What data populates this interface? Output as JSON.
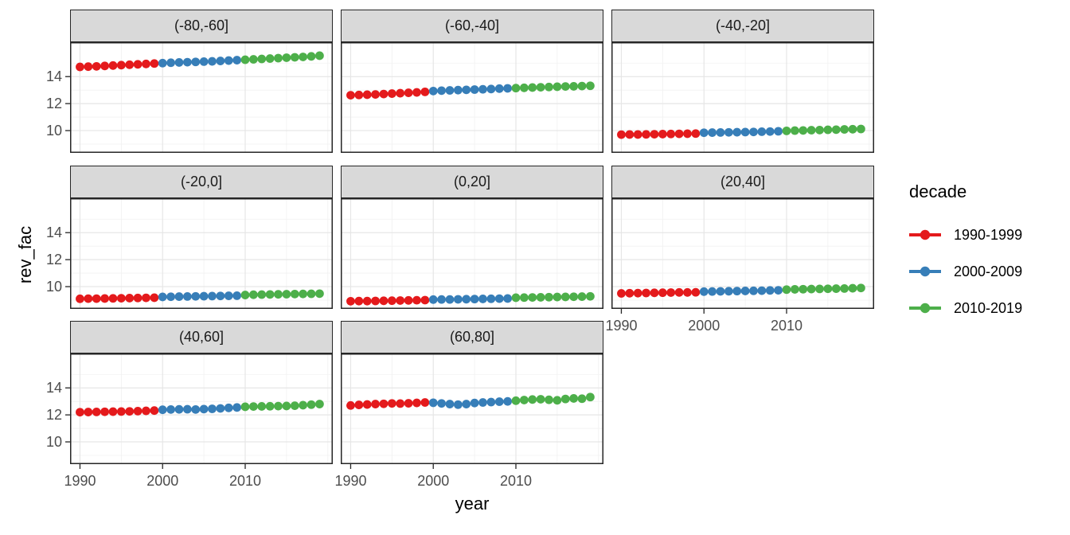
{
  "figure": {
    "y_axis_title": "rev_fac",
    "x_axis_title": "year"
  },
  "legend": {
    "title": "decade",
    "entries": [
      {
        "label": "1990-1999",
        "color": "#E41A1C",
        "start_year": 1990,
        "end_year": 1999
      },
      {
        "label": "2000-2009",
        "color": "#377EB8",
        "start_year": 2000,
        "end_year": 2009
      },
      {
        "label": "2010-2019",
        "color": "#4DAF4A",
        "start_year": 2010,
        "end_year": 2019
      }
    ]
  },
  "chart_data": {
    "type": "scatter",
    "title": "",
    "xlabel": "year",
    "ylabel": "rev_fac",
    "legend_title": "decade",
    "legend_position": "right",
    "grid": true,
    "x": [
      1990,
      1991,
      1992,
      1993,
      1994,
      1995,
      1996,
      1997,
      1998,
      1999,
      2000,
      2001,
      2002,
      2003,
      2004,
      2005,
      2006,
      2007,
      2008,
      2009,
      2010,
      2011,
      2012,
      2013,
      2014,
      2015,
      2016,
      2017,
      2018,
      2019
    ],
    "x_ticks": [
      1990,
      2000,
      2010
    ],
    "x_minor": [
      1995,
      2005,
      2015,
      2020
    ],
    "y_ticks": [
      10,
      12,
      14
    ],
    "y_minor": [
      9,
      11,
      13,
      15
    ],
    "xlim": [
      1988.8,
      2020.6
    ],
    "ylim": [
      8.35,
      16.55
    ],
    "series_by": "decade",
    "facets": [
      {
        "label": "(-80,-60]",
        "values": [
          14.72,
          14.74,
          14.76,
          14.79,
          14.82,
          14.85,
          14.88,
          14.91,
          14.94,
          14.97,
          15.0,
          15.03,
          15.05,
          15.07,
          15.09,
          15.11,
          15.13,
          15.16,
          15.19,
          15.22,
          15.25,
          15.28,
          15.31,
          15.34,
          15.37,
          15.4,
          15.43,
          15.46,
          15.5,
          15.55
        ]
      },
      {
        "label": "(-60,-40]",
        "values": [
          12.62,
          12.64,
          12.66,
          12.68,
          12.71,
          12.74,
          12.77,
          12.8,
          12.83,
          12.87,
          12.93,
          12.96,
          12.98,
          13.0,
          13.02,
          13.04,
          13.06,
          13.08,
          13.11,
          13.13,
          13.15,
          13.17,
          13.19,
          13.21,
          13.23,
          13.25,
          13.27,
          13.28,
          13.3,
          13.32
        ]
      },
      {
        "label": "(-40,-20]",
        "values": [
          9.7,
          9.71,
          9.71,
          9.72,
          9.73,
          9.74,
          9.75,
          9.76,
          9.77,
          9.78,
          9.84,
          9.85,
          9.86,
          9.87,
          9.88,
          9.89,
          9.9,
          9.92,
          9.93,
          9.95,
          9.98,
          10.0,
          10.01,
          10.03,
          10.04,
          10.06,
          10.07,
          10.09,
          10.1,
          10.12
        ]
      },
      {
        "label": "(-20,0]",
        "values": [
          9.1,
          9.11,
          9.11,
          9.12,
          9.13,
          9.14,
          9.15,
          9.16,
          9.17,
          9.18,
          9.24,
          9.25,
          9.26,
          9.27,
          9.28,
          9.29,
          9.3,
          9.31,
          9.32,
          9.33,
          9.38,
          9.4,
          9.41,
          9.42,
          9.43,
          9.44,
          9.45,
          9.46,
          9.47,
          9.48
        ]
      },
      {
        "label": "(0,20]",
        "values": [
          8.92,
          8.93,
          8.93,
          8.94,
          8.95,
          8.96,
          8.97,
          8.98,
          8.99,
          9.0,
          9.04,
          9.05,
          9.05,
          9.06,
          9.07,
          9.08,
          9.09,
          9.1,
          9.11,
          9.12,
          9.18,
          9.19,
          9.2,
          9.21,
          9.22,
          9.23,
          9.24,
          9.25,
          9.26,
          9.28
        ]
      },
      {
        "label": "(20,40]",
        "values": [
          9.5,
          9.51,
          9.52,
          9.53,
          9.54,
          9.55,
          9.56,
          9.57,
          9.57,
          9.58,
          9.63,
          9.64,
          9.65,
          9.66,
          9.67,
          9.68,
          9.69,
          9.7,
          9.72,
          9.73,
          9.78,
          9.8,
          9.81,
          9.82,
          9.83,
          9.84,
          9.85,
          9.86,
          9.88,
          9.9
        ]
      },
      {
        "label": "(40,60]",
        "values": [
          12.2,
          12.21,
          12.22,
          12.23,
          12.24,
          12.25,
          12.26,
          12.28,
          12.3,
          12.32,
          12.38,
          12.4,
          12.41,
          12.42,
          12.4,
          12.43,
          12.45,
          12.48,
          12.52,
          12.55,
          12.6,
          12.62,
          12.63,
          12.64,
          12.65,
          12.66,
          12.68,
          12.72,
          12.76,
          12.8
        ]
      },
      {
        "label": "(60,80]",
        "values": [
          12.7,
          12.74,
          12.77,
          12.8,
          12.82,
          12.85,
          12.84,
          12.86,
          12.89,
          12.92,
          12.9,
          12.85,
          12.8,
          12.76,
          12.8,
          12.88,
          12.92,
          12.95,
          12.98,
          13.0,
          13.05,
          13.1,
          13.14,
          13.16,
          13.12,
          13.08,
          13.18,
          13.22,
          13.2,
          13.32
        ]
      }
    ],
    "colors": {
      "major_grid": "#e6e6e6",
      "minor_grid": "#f1f1f1",
      "panel_border": "#262626",
      "strip_background": "#d9d9d9",
      "tick_label": "#4d4d4d"
    }
  }
}
